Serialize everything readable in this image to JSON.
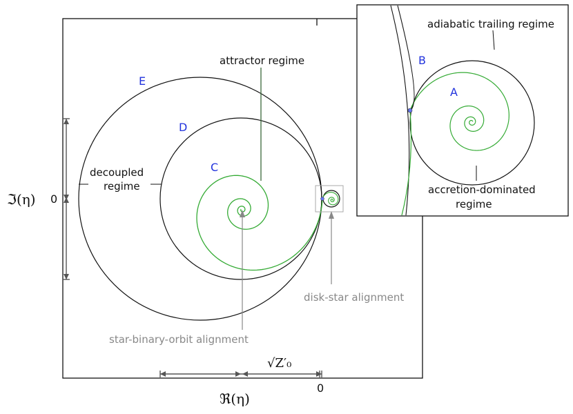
{
  "labels": {
    "attractor": "attractor regime",
    "decoupled_line1": "decoupled",
    "decoupled_line2": "regime",
    "star_binary": "star-binary-orbit alignment",
    "disk_star": "disk-star alignment",
    "adiabatic": "adiabatic trailing regime",
    "accretion_line1": "accretion-dominated",
    "accretion_line2": "regime"
  },
  "curve_labels": {
    "A": "A",
    "B": "B",
    "C": "C",
    "D": "D",
    "E": "E"
  },
  "axes": {
    "xlabel": "ℜ(η)",
    "ylabel": "ℑ(η)",
    "x_zero": "0",
    "y_zero": "0",
    "scale_label": "√Z′₀"
  },
  "colors": {
    "curve": "#111111",
    "spiral": "#33aa33",
    "annotation": "#888888",
    "letters": "#2233dd"
  }
}
